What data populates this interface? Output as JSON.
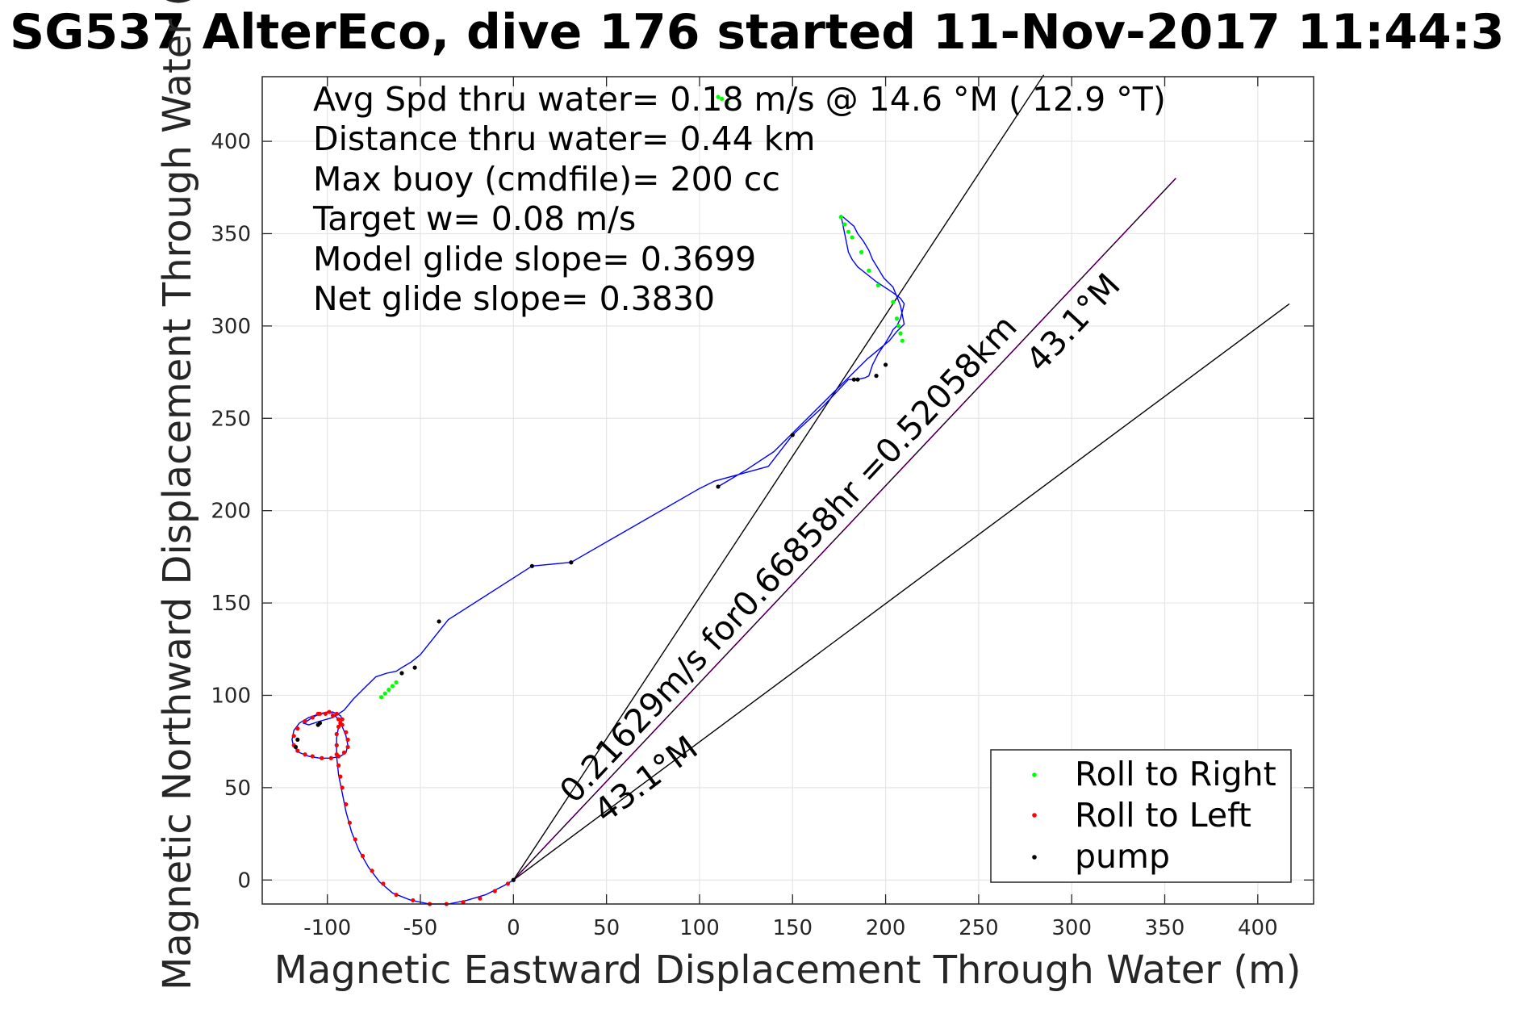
{
  "chart_data": {
    "type": "line",
    "title": "SG537 AlterEco, dive 176 started 11-Nov-2017 11:44:3",
    "xlabel": "Magnetic Eastward Displacement Through Water (m)",
    "ylabel": "Magnetic Northward Displacement Through Water (",
    "xlim": [
      -135,
      430
    ],
    "ylim": [
      -13,
      435
    ],
    "xticks": [
      -100,
      -50,
      0,
      50,
      100,
      150,
      200,
      250,
      300,
      350,
      400
    ],
    "yticks": [
      0,
      50,
      100,
      150,
      200,
      250,
      300,
      350,
      400
    ],
    "grid": true,
    "legend_placement": "bottom-right",
    "info_lines": [
      "Avg Spd thru water=  0.18 m/s @  14.6 °M ( 12.9 °T)",
      "Distance thru water=  0.44 km",
      "Max buoy (cmdfile)= 200 cc",
      "Target w= 0.08 m/s",
      "Model glide slope= 0.3699",
      "Net glide slope= 0.3830"
    ],
    "annotations": {
      "current_speed": "0.21629m/s for0.66858hr =0.52058km",
      "heading_lower": "43.1°M",
      "heading_upper": "43.1°M"
    },
    "colors": {
      "track": "#0000ff",
      "roll_right": "#00ff00",
      "roll_left": "#ff0000",
      "pump": "#000000",
      "current_line": "#cc00cc",
      "reference_lines": "#000000",
      "grid": "#e6e6e6"
    },
    "series": [
      {
        "name": "track",
        "kind": "line",
        "x": [
          0,
          -5,
          -15,
          -25,
          -35,
          -45,
          -55,
          -65,
          -72,
          -78,
          -83,
          -87,
          -90,
          -92,
          -94,
          -95,
          -95,
          -94,
          -92,
          -93,
          -97,
          -104,
          -110,
          -115,
          -118,
          -119,
          -118,
          -115,
          -110,
          -104,
          -98,
          -93,
          -90,
          -89,
          -90,
          -92,
          -94,
          -97,
          -100,
          -104,
          -108,
          -111,
          -113,
          -110,
          -104,
          -97,
          -91,
          -86,
          -80,
          -74,
          -68,
          -63,
          -60,
          -55,
          -50,
          -35,
          10,
          31,
          100,
          108,
          137,
          150,
          165,
          180,
          185,
          189,
          191,
          193,
          196,
          200,
          203,
          204,
          206,
          208,
          209,
          210,
          208,
          204,
          201,
          195,
          185,
          182,
          180,
          176,
          183,
          185,
          188,
          191,
          193,
          196,
          199,
          204,
          206,
          208,
          209,
          210,
          206,
          202,
          190,
          180,
          160,
          140,
          125,
          115,
          110
        ],
        "y": [
          0,
          -3,
          -8,
          -11,
          -13,
          -13,
          -11,
          -7,
          -1,
          7,
          16,
          26,
          37,
          47,
          57,
          67,
          77,
          83,
          87,
          89,
          91,
          90,
          88,
          85,
          81,
          76,
          72,
          69,
          67,
          66,
          66,
          67,
          69,
          73,
          78,
          83,
          87,
          90,
          91,
          90,
          88,
          86,
          85,
          84,
          86,
          88,
          92,
          98,
          104,
          110,
          112,
          113,
          115,
          118,
          122,
          141,
          170,
          172,
          212,
          216,
          224,
          241,
          255,
          271,
          271,
          272,
          273,
          279,
          285,
          291,
          296,
          298,
          300,
          304,
          308,
          312,
          315,
          318,
          320,
          324,
          332,
          336,
          340,
          360,
          354,
          350,
          346,
          341,
          336,
          331,
          326,
          321,
          316,
          311,
          306,
          301,
          297,
          292,
          282,
          272,
          252,
          232,
          222,
          216,
          213
        ]
      },
      {
        "name": "Roll to Right",
        "kind": "points",
        "x": [
          110,
          112,
          115,
          176,
          178,
          180,
          182,
          187,
          191,
          196,
          204,
          206,
          207,
          208,
          209,
          -63,
          -65,
          -67,
          -69,
          -71
        ],
        "y": [
          424,
          423,
          421,
          359,
          355,
          351,
          348,
          340,
          330,
          322,
          313,
          304,
          300,
          296,
          292,
          107,
          105,
          103,
          101,
          99
        ]
      },
      {
        "name": "Roll to Left",
        "kind": "points",
        "x": [
          -3,
          -10,
          -18,
          -27,
          -36,
          -45,
          -54,
          -63,
          -70,
          -76,
          -81,
          -85,
          -88,
          -90,
          -92,
          -93,
          -94,
          -95,
          -95,
          -95,
          -94,
          -93,
          -92,
          -95,
          -99,
          -104,
          -108,
          -112,
          -116,
          -118,
          -118,
          -116,
          -112,
          -108,
          -103,
          -98,
          -94,
          -91,
          -89,
          -89,
          -90,
          -92,
          -94,
          -97,
          -101,
          -105
        ],
        "y": [
          -2,
          -6,
          -10,
          -12,
          -13,
          -13,
          -11,
          -8,
          -2,
          5,
          13,
          22,
          31,
          41,
          50,
          56,
          62,
          68,
          73,
          79,
          83,
          85,
          87,
          90,
          91,
          90,
          88,
          86,
          82,
          78,
          73,
          70,
          68,
          67,
          66,
          66,
          67,
          69,
          72,
          76,
          80,
          84,
          87,
          89,
          90,
          90
        ]
      },
      {
        "name": "pump",
        "kind": "points",
        "x": [
          0,
          -117,
          -116,
          -105,
          -104,
          -60,
          -53,
          -40,
          10,
          31,
          150,
          185,
          183,
          195,
          200,
          110
        ],
        "y": [
          0,
          72,
          76,
          84,
          85,
          112,
          115,
          140,
          170,
          172,
          241,
          271,
          271,
          273,
          279,
          213
        ]
      }
    ],
    "current_line": {
      "x": [
        0,
        356
      ],
      "y": [
        0,
        380
      ]
    },
    "reference_lines": [
      {
        "x": [
          0,
          285
        ],
        "y": [
          0,
          436
        ]
      },
      {
        "x": [
          0,
          417
        ],
        "y": [
          0,
          312
        ]
      }
    ]
  },
  "legend": {
    "entries": [
      {
        "label": "Roll to Right",
        "color": "#00ff00"
      },
      {
        "label": "Roll to Left",
        "color": "#ff0000"
      },
      {
        "label": "pump",
        "color": "#000000"
      }
    ]
  }
}
